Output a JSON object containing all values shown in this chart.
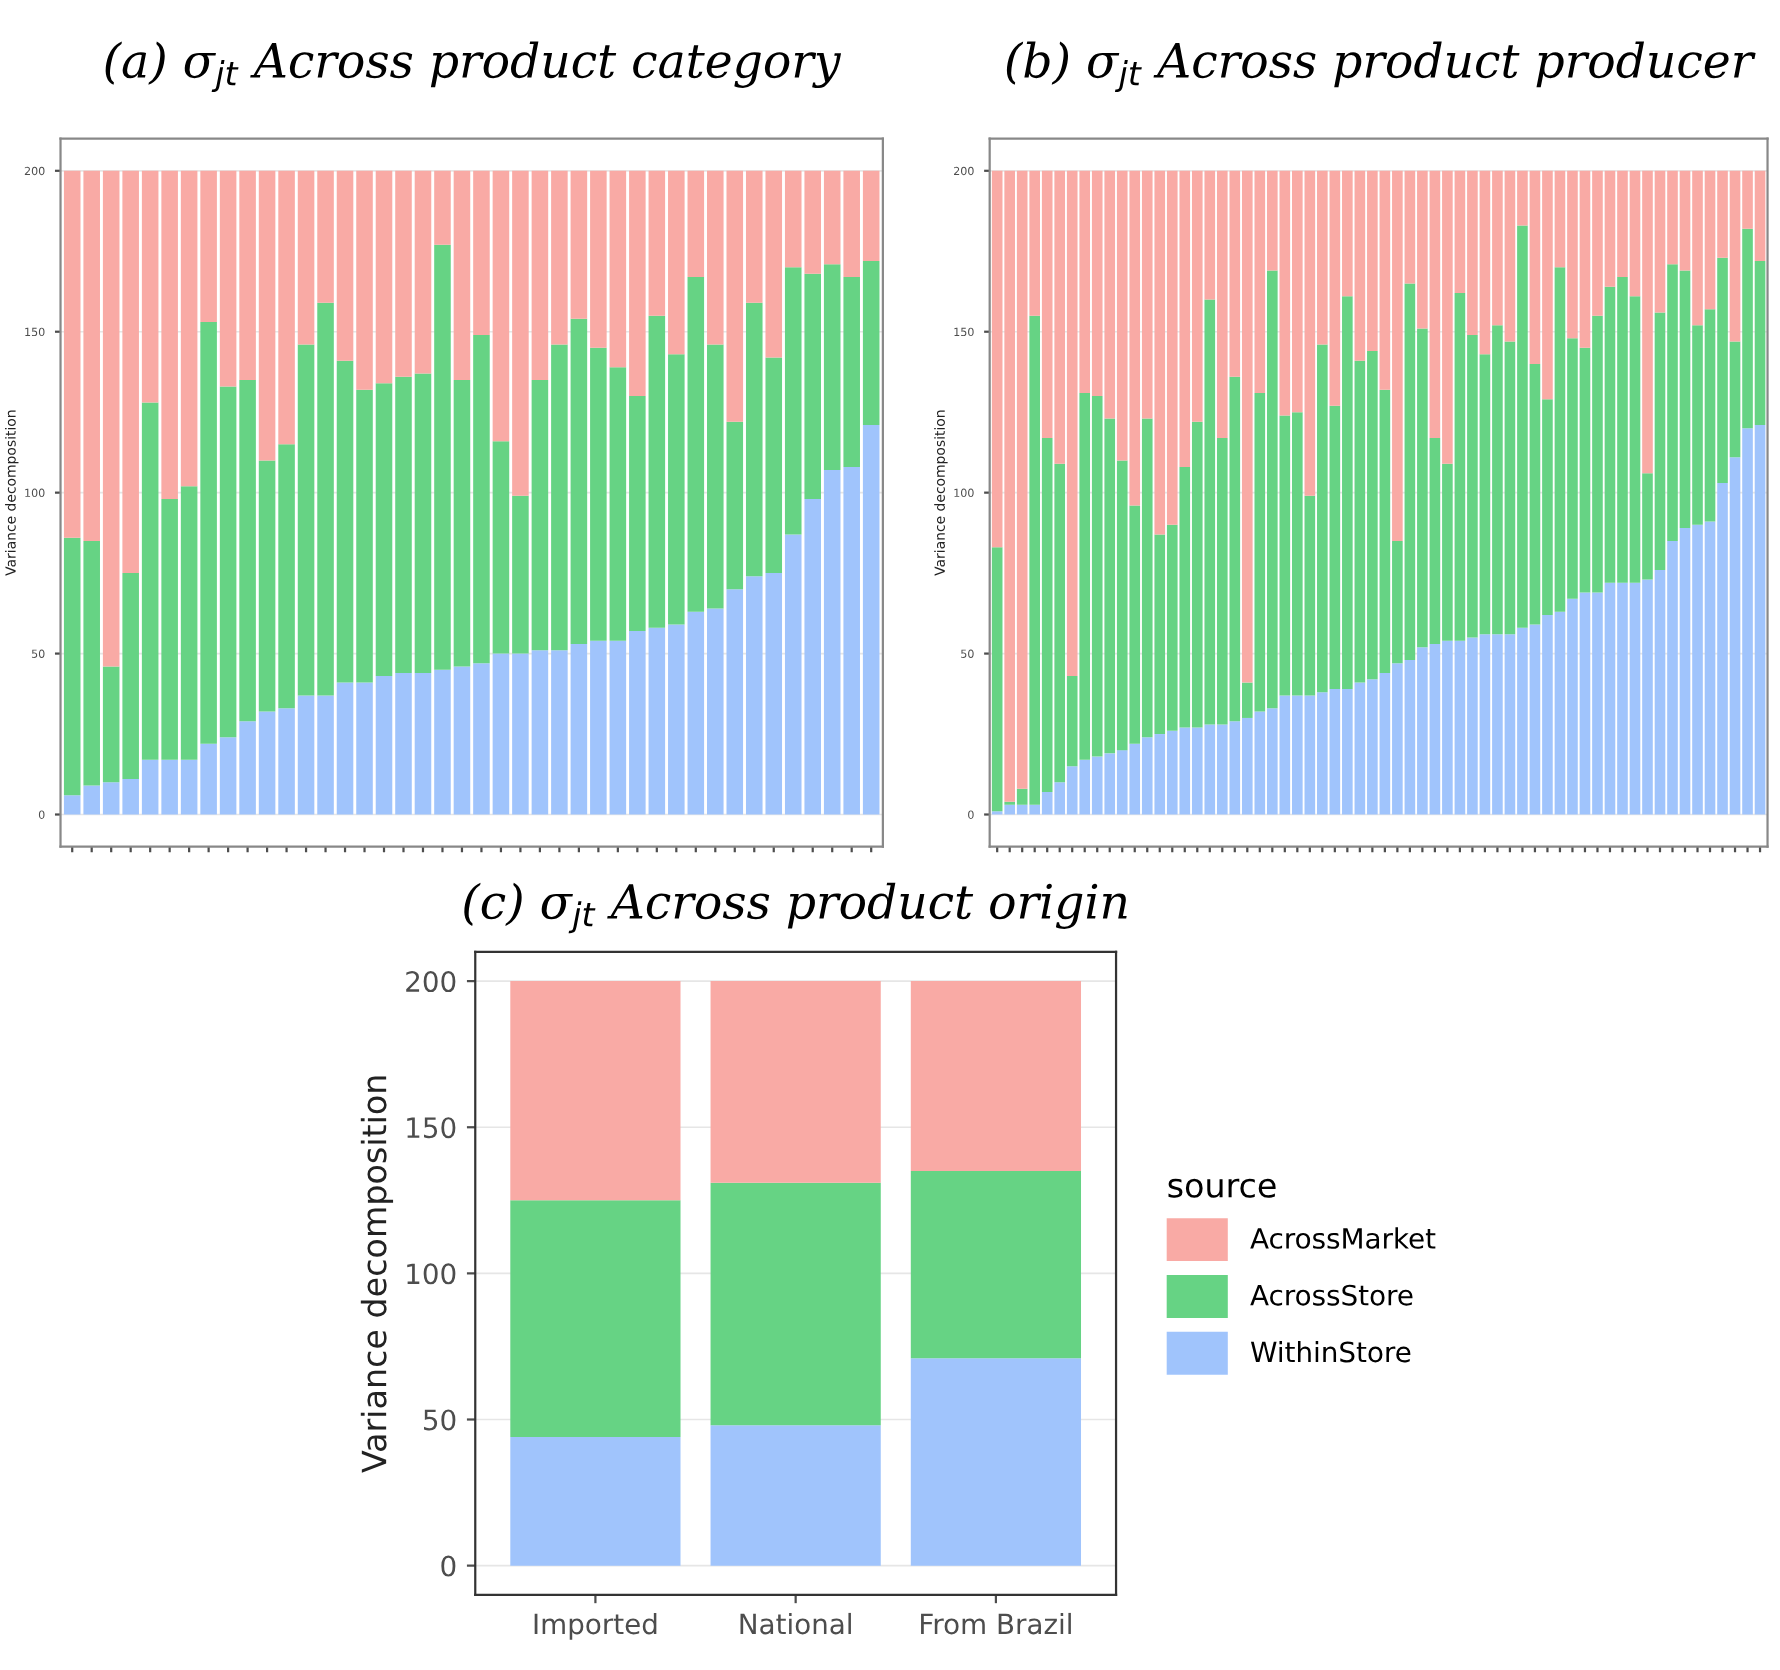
{
  "chart_data": [
    {
      "type": "bar",
      "stacked": true,
      "title": "(a) σ$_{jt}$ Across product category",
      "ylabel": "Variance decomposition",
      "categories": [
        null,
        null,
        null,
        null,
        null,
        null,
        null,
        null,
        null,
        null,
        null,
        null,
        null,
        null,
        null,
        null,
        null,
        null,
        null,
        null,
        null,
        null,
        null,
        null,
        null,
        null,
        null,
        null,
        null,
        null,
        null,
        null,
        null,
        null,
        null,
        null,
        null,
        null,
        null,
        null,
        null,
        null
      ],
      "series": [
        {
          "color": "#a0c4fc",
          "values": [
            6,
            9,
            10,
            11,
            17,
            17,
            17,
            22,
            24,
            29,
            32,
            33,
            37,
            37,
            41,
            41,
            43,
            44,
            44,
            45,
            46,
            47,
            50,
            50,
            51,
            51,
            53,
            54,
            54,
            57,
            58,
            59,
            63,
            64,
            70,
            74,
            75,
            87,
            98,
            107,
            108,
            121
          ]
        },
        {
          "color": "#66d384",
          "values": [
            80,
            76,
            36,
            64,
            111,
            81,
            85,
            131,
            109,
            106,
            78,
            82,
            109,
            122,
            100,
            91,
            91,
            92,
            93,
            132,
            89,
            102,
            66,
            49,
            84,
            95,
            101,
            91,
            85,
            73,
            97,
            84,
            104,
            82,
            52,
            85,
            67,
            83,
            70,
            64,
            59,
            51
          ]
        },
        {
          "color": "#f9aaa5",
          "values": [
            114,
            115,
            154,
            125,
            72,
            102,
            98,
            47,
            67,
            65,
            90,
            85,
            54,
            41,
            59,
            68,
            66,
            64,
            63,
            23,
            65,
            51,
            84,
            101,
            65,
            54,
            46,
            55,
            61,
            70,
            45,
            57,
            33,
            54,
            78,
            41,
            58,
            30,
            32,
            29,
            33,
            28
          ]
        }
      ],
      "ylim": [
        -10,
        210
      ],
      "yticks": [
        0,
        50,
        100,
        150,
        200
      ],
      "grid": "y",
      "tick_labels": "y"
    },
    {
      "type": "bar",
      "stacked": true,
      "title": "(b) σ$_{jt}$ Across product producer",
      "ylabel": "Variance decomposition",
      "categories": [
        null,
        null,
        null,
        null,
        null,
        null,
        null,
        null,
        null,
        null,
        null,
        null,
        null,
        null,
        null,
        null,
        null,
        null,
        null,
        null,
        null,
        null,
        null,
        null,
        null,
        null,
        null,
        null,
        null,
        null,
        null,
        null,
        null,
        null,
        null,
        null,
        null,
        null,
        null,
        null,
        null,
        null,
        null,
        null,
        null,
        null,
        null,
        null,
        null,
        null,
        null,
        null,
        null,
        null,
        null,
        null,
        null,
        null,
        null,
        null,
        null,
        null
      ],
      "series": [
        {
          "color": "#a0c4fc",
          "values": [
            1,
            3,
            3,
            3,
            7,
            10,
            15,
            17,
            18,
            19,
            20,
            22,
            24,
            25,
            26,
            27,
            27,
            28,
            28,
            29,
            30,
            32,
            33,
            37,
            37,
            37,
            38,
            39,
            39,
            41,
            42,
            44,
            47,
            48,
            52,
            53,
            54,
            54,
            55,
            56,
            56,
            56,
            58,
            59,
            62,
            63,
            67,
            69,
            69,
            72,
            72,
            72,
            73,
            76,
            85,
            89,
            90,
            91,
            103,
            111,
            120,
            121
          ]
        },
        {
          "color": "#66d384",
          "values": [
            82,
            1,
            5,
            152,
            110,
            99,
            28,
            114,
            112,
            104,
            90,
            74,
            99,
            62,
            64,
            81,
            95,
            132,
            89,
            107,
            11,
            99,
            136,
            87,
            88,
            62,
            108,
            88,
            122,
            100,
            102,
            88,
            38,
            117,
            99,
            64,
            55,
            108,
            94,
            87,
            96,
            91,
            125,
            81,
            67,
            107,
            81,
            76,
            86,
            92,
            95,
            89,
            33,
            80,
            86,
            80,
            62,
            66,
            70,
            36,
            62,
            51
          ]
        },
        {
          "color": "#f9aaa5",
          "values": [
            117,
            196,
            192,
            45,
            83,
            91,
            157,
            69,
            70,
            77,
            90,
            104,
            77,
            113,
            110,
            92,
            78,
            40,
            83,
            64,
            159,
            69,
            31,
            76,
            75,
            101,
            54,
            73,
            39,
            59,
            56,
            68,
            115,
            35,
            49,
            83,
            91,
            38,
            51,
            57,
            48,
            53,
            17,
            60,
            71,
            30,
            52,
            55,
            45,
            36,
            33,
            39,
            94,
            44,
            29,
            31,
            48,
            43,
            27,
            53,
            18,
            28
          ]
        }
      ],
      "ylim": [
        -10,
        210
      ],
      "yticks": [
        0,
        50,
        100,
        150,
        200
      ],
      "grid": "y",
      "tick_labels": "y"
    },
    {
      "type": "bar",
      "stacked": true,
      "title": "(c) σ$_{jt}$ Across product origin",
      "ylabel": "Variance decomposition",
      "legend_title": "source",
      "categories": [
        "Imported",
        "National",
        "From Brazil"
      ],
      "series": [
        {
          "name": "WithinStore",
          "color": "#a0c4fc",
          "values": [
            44,
            48,
            71
          ]
        },
        {
          "name": "AcrossStore",
          "color": "#66d384",
          "values": [
            81,
            83,
            64
          ]
        },
        {
          "name": "AcrossMarket",
          "color": "#f9aaa5",
          "values": [
            75,
            69,
            65
          ]
        }
      ],
      "ylim": [
        -10,
        210
      ],
      "yticks": [
        0,
        50,
        100,
        150,
        200
      ],
      "grid": "y",
      "legend": "right"
    }
  ]
}
